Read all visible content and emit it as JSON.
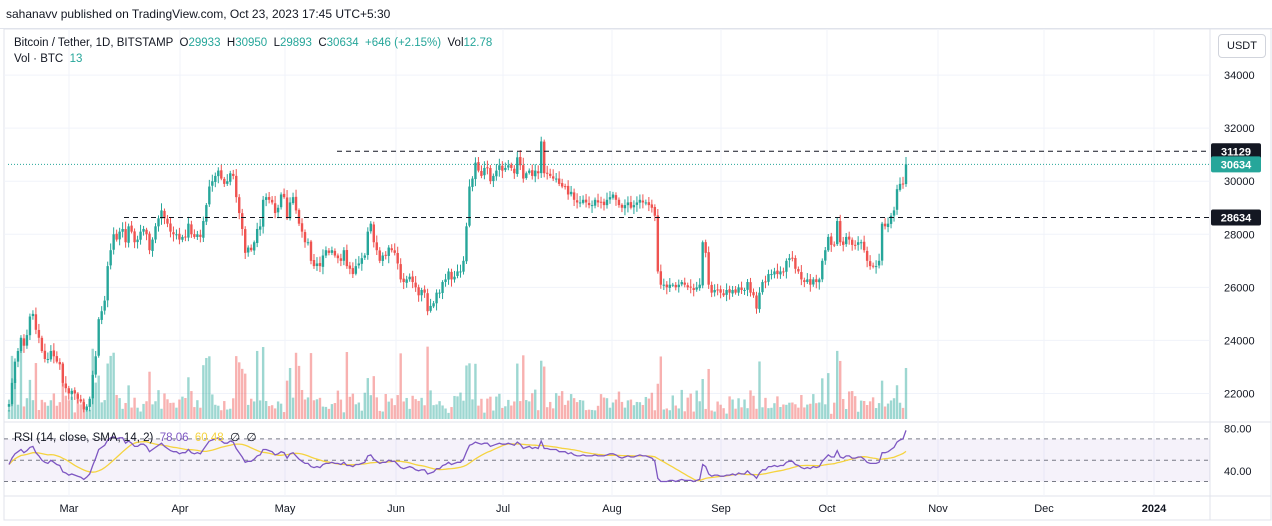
{
  "header": {
    "published": "sahanavv published on TradingView.com, Oct 23, 2023 17:45 UTC+5:30"
  },
  "legend": {
    "symbol": "Bitcoin / Tether, 1D, BITSTAMP",
    "o_label": "O",
    "o_value": "29933",
    "h_label": "H",
    "h_value": "30950",
    "l_label": "L",
    "l_value": "29893",
    "c_label": "C",
    "c_value": "30634",
    "change": "+646 (+2.15%)",
    "vol_label": "Vol",
    "vol_value": "12.78",
    "vol_row_label": "Vol · BTC",
    "vol_row_value": "13"
  },
  "rsi_legend": {
    "label": "RSI (14, close, SMA, 14, 2)",
    "rsi_value": "78.06",
    "sma_value": "60.48",
    "extra1": "∅",
    "extra2": "∅"
  },
  "currency": "USDT",
  "colors": {
    "up": "#26a69a",
    "down": "#ef5350",
    "rsi": "#7e57c2",
    "rsi_sma": "#f5d33f",
    "level_label_bg": "#131722",
    "price_label_bg": "#26a69a"
  },
  "chart_data": {
    "type": "candlestick",
    "price_axis": {
      "ticks": [
        34000,
        32000,
        30000,
        28000,
        26000,
        24000,
        22000
      ],
      "tick_labels": [
        "34000",
        "32000",
        "30000",
        "28000",
        "26000",
        "24000",
        "22000"
      ],
      "range": [
        21000,
        35700
      ]
    },
    "rsi_axis": {
      "tick_labels": [
        "80.00",
        "40.00"
      ],
      "ticks": [
        80,
        40
      ],
      "levels": [
        70,
        50,
        30
      ],
      "range": [
        22,
        84
      ]
    },
    "x_axis": {
      "labels": [
        "Mar",
        "Apr",
        "May",
        "Jun",
        "Jul",
        "Aug",
        "Sep",
        "Oct",
        "Nov",
        "Dec",
        "2024"
      ]
    },
    "horizontal_levels": [
      {
        "value": 31129,
        "label": "31129",
        "style": "dashed"
      },
      {
        "value": 28634,
        "label": "28634",
        "style": "dashed"
      }
    ],
    "last_price": {
      "value": 30634,
      "label": "30634"
    },
    "close_series": [
      21600,
      22400,
      23200,
      23600,
      24100,
      23800,
      24200,
      24900,
      25000,
      24400,
      24100,
      23600,
      23300,
      23300,
      23600,
      23400,
      23200,
      23100,
      22400,
      22200,
      22000,
      22100,
      22000,
      21800,
      21700,
      21400,
      21500,
      21800,
      22700,
      23400,
      24800,
      25100,
      25500,
      26800,
      27400,
      28000,
      27800,
      28100,
      28200,
      27700,
      28300,
      28100,
      27700,
      27800,
      28100,
      28200,
      28000,
      27400,
      27800,
      28300,
      28600,
      28900,
      28600,
      28400,
      28100,
      28000,
      28000,
      27800,
      27900,
      27900,
      28400,
      28000,
      27900,
      28000,
      27900,
      28500,
      29100,
      29800,
      30000,
      30200,
      30400,
      30100,
      29900,
      30000,
      30300,
      30200,
      29400,
      28800,
      28200,
      27300,
      27500,
      27400,
      27700,
      28200,
      28300,
      29300,
      29400,
      29300,
      29200,
      28800,
      29000,
      29500,
      29400,
      28600,
      29200,
      29400,
      28900,
      28400,
      28100,
      27700,
      27700,
      27000,
      26800,
      26900,
      26800,
      27200,
      27400,
      27300,
      27400,
      27200,
      27100,
      27000,
      27400,
      26800,
      26700,
      26500,
      26800,
      26900,
      27100,
      27200,
      28100,
      28400,
      27700,
      27400,
      27000,
      27200,
      27200,
      27500,
      27400,
      27300,
      26900,
      26300,
      26200,
      26300,
      26400,
      26200,
      26000,
      25700,
      25900,
      25800,
      25100,
      25300,
      25400,
      25800,
      25800,
      26200,
      26300,
      26600,
      26300,
      26400,
      26600,
      26600,
      27000,
      28300,
      29800,
      30100,
      30700,
      30400,
      30200,
      30500,
      30500,
      30000,
      30200,
      30400,
      30600,
      30400,
      30500,
      30600,
      30500,
      30300,
      30900,
      30600,
      30100,
      30300,
      30400,
      30200,
      30400,
      30300,
      31500,
      30300,
      30300,
      30200,
      30100,
      30100,
      29900,
      29800,
      29800,
      29500,
      29600,
      29300,
      29200,
      29200,
      29300,
      29200,
      29100,
      29100,
      29300,
      29200,
      29200,
      29100,
      29300,
      29400,
      29500,
      29300,
      29100,
      29000,
      29100,
      29200,
      29000,
      29100,
      29200,
      29300,
      29200,
      29200,
      29100,
      29000,
      28700,
      26600,
      26100,
      26100,
      26000,
      26100,
      26100,
      26000,
      26100,
      26200,
      26100,
      26000,
      26000,
      25900,
      26000,
      26100,
      27700,
      27300,
      26100,
      25800,
      25900,
      25900,
      25800,
      25700,
      25900,
      25800,
      25900,
      25800,
      26000,
      25900,
      25900,
      26200,
      25800,
      25700,
      25200,
      25800,
      26200,
      26200,
      26500,
      26500,
      26600,
      26500,
      26600,
      26600,
      27000,
      27100,
      27100,
      26700,
      26600,
      26300,
      26200,
      26300,
      26100,
      26300,
      26200,
      26300,
      27000,
      27400,
      27900,
      27600,
      27600,
      28500,
      27700,
      27600,
      27900,
      27800,
      27600,
      27600,
      27700,
      27700,
      27400,
      27000,
      26800,
      26800,
      26800,
      27000,
      28400,
      28300,
      28400,
      28700,
      28900,
      29700,
      29900,
      29900,
      30634
    ],
    "rsi_series": [
      46,
      52,
      56,
      58,
      60,
      57,
      59,
      62,
      63,
      57,
      54,
      50,
      48,
      47,
      50,
      48,
      46,
      45,
      39,
      38,
      36,
      37,
      36,
      35,
      34,
      32,
      34,
      37,
      45,
      52,
      60,
      62,
      64,
      69,
      71,
      72,
      70,
      71,
      71,
      66,
      68,
      66,
      63,
      63,
      65,
      65,
      63,
      58,
      60,
      62,
      64,
      66,
      63,
      61,
      59,
      58,
      58,
      56,
      57,
      57,
      60,
      57,
      56,
      57,
      56,
      60,
      64,
      68,
      69,
      70,
      71,
      68,
      66,
      66,
      68,
      67,
      61,
      57,
      53,
      48,
      49,
      49,
      51,
      54,
      55,
      60,
      60,
      59,
      58,
      55,
      56,
      58,
      57,
      52,
      56,
      57,
      54,
      51,
      49,
      47,
      47,
      44,
      43,
      44,
      43,
      46,
      47,
      47,
      48,
      47,
      47,
      46,
      48,
      45,
      45,
      44,
      46,
      46,
      47,
      48,
      54,
      55,
      51,
      49,
      47,
      48,
      48,
      50,
      49,
      49,
      46,
      43,
      42,
      43,
      44,
      43,
      41,
      40,
      41,
      41,
      37,
      38,
      39,
      42,
      42,
      45,
      46,
      48,
      46,
      47,
      48,
      48,
      51,
      58,
      64,
      65,
      67,
      66,
      65,
      66,
      66,
      63,
      64,
      65,
      66,
      65,
      65,
      66,
      65,
      64,
      67,
      65,
      61,
      62,
      63,
      61,
      62,
      61,
      68,
      61,
      61,
      60,
      60,
      60,
      58,
      58,
      58,
      56,
      57,
      55,
      54,
      54,
      55,
      54,
      54,
      54,
      55,
      54,
      54,
      54,
      55,
      56,
      56,
      55,
      53,
      52,
      53,
      54,
      53,
      53,
      54,
      55,
      54,
      54,
      53,
      52,
      49,
      33,
      30,
      30,
      30,
      31,
      31,
      30,
      31,
      32,
      31,
      31,
      31,
      30,
      31,
      32,
      46,
      44,
      37,
      35,
      36,
      36,
      35,
      35,
      36,
      36,
      37,
      36,
      38,
      37,
      37,
      40,
      37,
      36,
      33,
      38,
      41,
      41,
      44,
      44,
      45,
      44,
      45,
      45,
      48,
      49,
      49,
      46,
      45,
      43,
      42,
      43,
      42,
      44,
      43,
      44,
      49,
      52,
      55,
      53,
      53,
      59,
      53,
      52,
      54,
      54,
      52,
      52,
      53,
      53,
      51,
      48,
      47,
      47,
      47,
      48,
      57,
      57,
      58,
      60,
      62,
      67,
      69,
      70,
      78
    ]
  }
}
